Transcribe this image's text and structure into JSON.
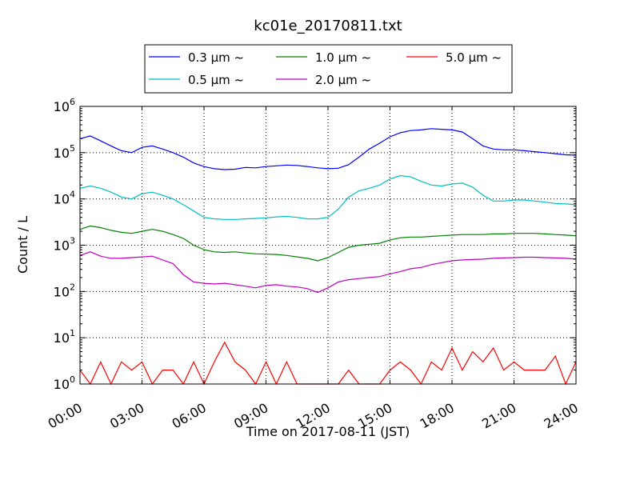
{
  "chart_data": {
    "type": "line",
    "title": "kc01e_20170811.txt",
    "xlabel": "Time on 2017-08-11 (JST)",
    "ylabel": "Count / L",
    "yscale": "log",
    "ylim": [
      1,
      1000000
    ],
    "xlim": [
      "00:00",
      "24:00"
    ],
    "x_ticks": [
      "00:00",
      "03:00",
      "06:00",
      "09:00",
      "12:00",
      "15:00",
      "18:00",
      "21:00",
      "24:00"
    ],
    "y_ticks": [
      {
        "base": "10",
        "exp": "0"
      },
      {
        "base": "10",
        "exp": "1"
      },
      {
        "base": "10",
        "exp": "2"
      },
      {
        "base": "10",
        "exp": "3"
      },
      {
        "base": "10",
        "exp": "4"
      },
      {
        "base": "10",
        "exp": "5"
      },
      {
        "base": "10",
        "exp": "6"
      }
    ],
    "grid": true,
    "legend_position": "top-center",
    "series": [
      {
        "name": "0.3 μm ~",
        "color": "#0000ff",
        "x": [
          "00:00",
          "00:30",
          "01:00",
          "01:30",
          "02:00",
          "02:30",
          "03:00",
          "03:30",
          "04:00",
          "04:30",
          "05:00",
          "05:30",
          "06:00",
          "06:30",
          "07:00",
          "07:30",
          "08:00",
          "08:30",
          "09:00",
          "09:30",
          "10:00",
          "10:30",
          "11:00",
          "11:30",
          "12:00",
          "12:30",
          "13:00",
          "13:30",
          "14:00",
          "14:30",
          "15:00",
          "15:30",
          "16:00",
          "16:30",
          "17:00",
          "17:30",
          "18:00",
          "18:30",
          "19:00",
          "19:30",
          "20:00",
          "20:30",
          "21:00",
          "21:30",
          "22:00",
          "22:30",
          "23:00",
          "23:30",
          "24:00"
        ],
        "y": [
          200000,
          230000,
          180000,
          140000,
          110000,
          100000,
          130000,
          140000,
          120000,
          100000,
          80000,
          60000,
          50000,
          45000,
          43000,
          44000,
          48000,
          47000,
          50000,
          52000,
          54000,
          53000,
          50000,
          47000,
          45000,
          46000,
          55000,
          80000,
          120000,
          160000,
          220000,
          270000,
          300000,
          310000,
          330000,
          320000,
          310000,
          280000,
          200000,
          140000,
          120000,
          115000,
          115000,
          110000,
          105000,
          100000,
          95000,
          90000,
          88000
        ]
      },
      {
        "name": "0.5 μm ~",
        "color": "#00bfbf",
        "x": [
          "00:00",
          "00:30",
          "01:00",
          "01:30",
          "02:00",
          "02:30",
          "03:00",
          "03:30",
          "04:00",
          "04:30",
          "05:00",
          "05:30",
          "06:00",
          "06:30",
          "07:00",
          "07:30",
          "08:00",
          "08:30",
          "09:00",
          "09:30",
          "10:00",
          "10:30",
          "11:00",
          "11:30",
          "12:00",
          "12:30",
          "13:00",
          "13:30",
          "14:00",
          "14:30",
          "15:00",
          "15:30",
          "16:00",
          "16:30",
          "17:00",
          "17:30",
          "18:00",
          "18:30",
          "19:00",
          "19:30",
          "20:00",
          "20:30",
          "21:00",
          "21:30",
          "22:00",
          "22:30",
          "23:00",
          "23:30",
          "24:00"
        ],
        "y": [
          17000,
          19000,
          17000,
          14000,
          11000,
          10000,
          13000,
          14000,
          12000,
          10000,
          7500,
          5500,
          4000,
          3700,
          3600,
          3600,
          3700,
          3800,
          3900,
          4100,
          4200,
          4000,
          3700,
          3700,
          4000,
          6000,
          11000,
          15000,
          17000,
          20000,
          27000,
          32000,
          30000,
          24000,
          20000,
          19000,
          21000,
          22000,
          18000,
          12000,
          9000,
          9000,
          9500,
          9500,
          9000,
          8500,
          8000,
          7800,
          7500
        ]
      },
      {
        "name": "1.0 μm ~",
        "color": "#008000",
        "x": [
          "00:00",
          "00:30",
          "01:00",
          "01:30",
          "02:00",
          "02:30",
          "03:00",
          "03:30",
          "04:00",
          "04:30",
          "05:00",
          "05:30",
          "06:00",
          "06:30",
          "07:00",
          "07:30",
          "08:00",
          "08:30",
          "09:00",
          "09:30",
          "10:00",
          "10:30",
          "11:00",
          "11:30",
          "12:00",
          "12:30",
          "13:00",
          "13:30",
          "14:00",
          "14:30",
          "15:00",
          "15:30",
          "16:00",
          "16:30",
          "17:00",
          "17:30",
          "18:00",
          "18:30",
          "19:00",
          "19:30",
          "20:00",
          "20:30",
          "21:00",
          "21:30",
          "22:00",
          "22:30",
          "23:00",
          "23:30",
          "24:00"
        ],
        "y": [
          2200,
          2600,
          2400,
          2100,
          1900,
          1800,
          2000,
          2200,
          2000,
          1700,
          1400,
          1000,
          800,
          720,
          700,
          720,
          680,
          650,
          640,
          630,
          600,
          560,
          520,
          460,
          540,
          700,
          900,
          1000,
          1050,
          1100,
          1300,
          1450,
          1500,
          1500,
          1550,
          1600,
          1650,
          1700,
          1700,
          1700,
          1750,
          1750,
          1800,
          1800,
          1800,
          1750,
          1700,
          1650,
          1600
        ]
      },
      {
        "name": "2.0 μm ~",
        "color": "#bf00bf",
        "x": [
          "00:00",
          "00:30",
          "01:00",
          "01:30",
          "02:00",
          "02:30",
          "03:00",
          "03:30",
          "04:00",
          "04:30",
          "05:00",
          "05:30",
          "06:00",
          "06:30",
          "07:00",
          "07:30",
          "08:00",
          "08:30",
          "09:00",
          "09:30",
          "10:00",
          "10:30",
          "11:00",
          "11:30",
          "12:00",
          "12:30",
          "13:00",
          "13:30",
          "14:00",
          "14:30",
          "15:00",
          "15:30",
          "16:00",
          "16:30",
          "17:00",
          "17:30",
          "18:00",
          "18:30",
          "19:00",
          "19:30",
          "20:00",
          "20:30",
          "21:00",
          "21:30",
          "22:00",
          "22:30",
          "23:00",
          "23:30",
          "24:00"
        ],
        "y": [
          600,
          720,
          580,
          520,
          520,
          540,
          560,
          580,
          480,
          400,
          230,
          160,
          150,
          145,
          150,
          140,
          130,
          120,
          135,
          140,
          130,
          125,
          115,
          95,
          120,
          160,
          180,
          190,
          200,
          210,
          240,
          270,
          310,
          330,
          380,
          420,
          460,
          480,
          490,
          500,
          520,
          530,
          540,
          550,
          550,
          540,
          530,
          520,
          500
        ]
      },
      {
        "name": "5.0 μm ~",
        "color": "#ff0000",
        "x": [
          "00:00",
          "00:30",
          "01:00",
          "01:30",
          "02:00",
          "02:30",
          "03:00",
          "03:30",
          "04:00",
          "04:30",
          "05:00",
          "05:30",
          "06:00",
          "06:30",
          "07:00",
          "07:30",
          "08:00",
          "08:30",
          "09:00",
          "09:30",
          "10:00",
          "10:30",
          "11:00",
          "11:30",
          "12:00",
          "12:30",
          "13:00",
          "13:30",
          "14:00",
          "14:30",
          "15:00",
          "15:30",
          "16:00",
          "16:30",
          "17:00",
          "17:30",
          "18:00",
          "18:30",
          "19:00",
          "19:30",
          "20:00",
          "20:30",
          "21:00",
          "21:30",
          "22:00",
          "22:30",
          "23:00",
          "23:30",
          "24:00"
        ],
        "y": [
          2,
          1,
          3,
          1,
          3,
          2,
          3,
          1,
          2,
          2,
          1,
          3,
          1,
          3,
          8,
          3,
          2,
          1,
          3,
          1,
          3,
          1,
          1,
          1,
          1,
          1,
          2,
          1,
          1,
          1,
          2,
          3,
          2,
          1,
          3,
          2,
          6,
          2,
          5,
          3,
          6,
          2,
          3,
          2,
          2,
          2,
          4,
          1,
          3
        ]
      }
    ]
  }
}
